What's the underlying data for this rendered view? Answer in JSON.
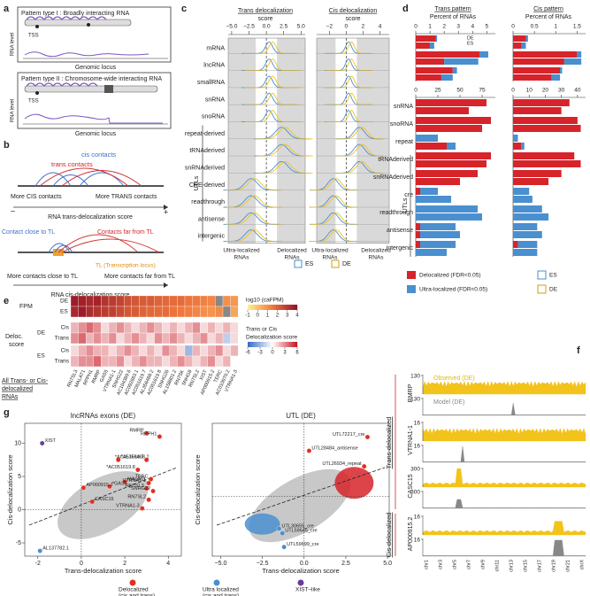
{
  "a": {
    "label": "a",
    "type1": "Pattern type I : Broadly interacting RNA",
    "type2": "Pattern type II : Chromosome-wide interacting RNA",
    "tss": "TSS",
    "rna_level": "RNA level",
    "genomic_locus": "Genomic locus"
  },
  "b": {
    "label": "b",
    "cis_contacts": "cis contacts",
    "trans_contacts": "trans contacts",
    "more_cis": "More CIS contacts",
    "more_trans": "More TRANS contacts",
    "minus": "–",
    "plus": "+",
    "trans_score": "RNA trans-delocalization score",
    "close_tl": "Contact close to TL",
    "far_tl": "Contacts far from TL",
    "tl": "TL (Transcription locus)",
    "more_close": "More contacts close to TL",
    "more_far": "More contacts far from TL",
    "cis_score": "RNA cis-delocalization score"
  },
  "c": {
    "label": "c",
    "trans_title": [
      "Trans delocalization",
      "score"
    ],
    "cis_title": [
      "Cis delocalization",
      "score"
    ],
    "trans_xlim": [
      -5.5,
      5.6
    ],
    "trans_xticks": [
      {
        "value": -5,
        "label": "−5.0"
      },
      {
        "value": -2.5,
        "label": "−2.5"
      },
      {
        "value": 0,
        "label": "0.0"
      },
      2.5,
      {
        "value": 5,
        "label": "5.0"
      }
    ],
    "cis_xlim": [
      -3.5,
      5.1
    ],
    "cis_xticks": [
      {
        "value": -2,
        "label": "−2"
      },
      0,
      2,
      4
    ],
    "categories": [
      "mRNA",
      "lncRNA",
      "smallRNA",
      "snRNA",
      "snoRNA",
      "repeat-derived",
      "tRNAderived",
      "snRNAderived",
      "CRE-derived",
      "readthrough",
      "antisense",
      "intergenic"
    ],
    "utls": "UTLs",
    "ultra": [
      "Ultra-localized",
      "RNAs"
    ],
    "deloc": [
      "Delocalized",
      "RNAs"
    ],
    "legend": [
      "ES",
      "DE"
    ]
  },
  "d": {
    "label": "d",
    "trans_title": "Trans pattern",
    "cis_title": "Cis pattern",
    "pct": "Percent of RNAs",
    "trans_top": {
      "xlim": [
        0,
        5.6
      ],
      "xticks": [
        0,
        1,
        2,
        3,
        4,
        5
      ],
      "delocalized": [
        [
          1.4,
          1.0
        ],
        [
          4.5,
          2.0
        ],
        [
          2.6,
          1.8
        ]
      ],
      "ultra": [
        [
          0.1,
          0.3
        ],
        [
          0.6,
          2.4
        ],
        [
          0.3,
          0.8
        ]
      ]
    },
    "cis_top": {
      "xlim": [
        0,
        1.7
      ],
      "xticks": [
        0,
        0.5,
        1,
        1.5
      ],
      "delocalized": [
        [
          0.3,
          0.2
        ],
        [
          1.5,
          1.2
        ],
        [
          1.1,
          0.9
        ]
      ],
      "ultra": [
        [
          0.05,
          0.1
        ],
        [
          0.1,
          0.4
        ],
        [
          0.05,
          0.2
        ]
      ]
    },
    "categories": [
      "snRNA",
      "snoRNA",
      "repeat",
      "tRNAderived",
      "snRNAderived",
      "cre",
      "readthrough",
      "antisense",
      "intergenic"
    ],
    "trans_bottom": {
      "xlim": [
        0,
        90
      ],
      "xticks": [
        0,
        25,
        50,
        75
      ],
      "delocalized": [
        [
          80,
          60
        ],
        [
          85,
          75
        ],
        [
          0,
          35
        ],
        [
          85,
          80
        ],
        [
          70,
          50
        ],
        [
          5,
          0
        ],
        [
          0,
          0
        ],
        [
          5,
          5
        ],
        [
          5,
          0
        ]
      ],
      "ultra": [
        [
          0,
          0
        ],
        [
          0,
          0
        ],
        [
          25,
          10
        ],
        [
          0,
          0
        ],
        [
          0,
          0
        ],
        [
          20,
          40
        ],
        [
          70,
          75
        ],
        [
          40,
          45
        ],
        [
          40,
          35
        ]
      ]
    },
    "cis_bottom": {
      "xlim": [
        0,
        45
      ],
      "xticks": [
        0,
        10,
        20,
        30,
        40
      ],
      "delocalized": [
        [
          35,
          30
        ],
        [
          40,
          42
        ],
        [
          0,
          5
        ],
        [
          38,
          42
        ],
        [
          30,
          22
        ],
        [
          0,
          0
        ],
        [
          0,
          0
        ],
        [
          0,
          0
        ],
        [
          3,
          0
        ]
      ],
      "ultra": [
        [
          0,
          0
        ],
        [
          0,
          0
        ],
        [
          3,
          2
        ],
        [
          0,
          0
        ],
        [
          0,
          0
        ],
        [
          10,
          12
        ],
        [
          18,
          22
        ],
        [
          15,
          18
        ],
        [
          12,
          15
        ]
      ]
    },
    "utls": "UTLs",
    "legend": {
      "delocalized": "Delocalized (FDR<0.05)",
      "ultra": "Ultra-localized (FDR<0.05)",
      "es": "ES",
      "de": "DE"
    }
  },
  "e": {
    "label": "e",
    "fpm": "FPM",
    "de": "DE",
    "es": "ES",
    "deloc": [
      "Deloc.",
      "score"
    ],
    "cis": "Cis",
    "trans": "Trans",
    "columns": [
      "RN7SL3",
      "MALAT1",
      "RPPH1",
      "RMRP",
      "GAS5",
      "VTRNA1-1",
      "SNHG22",
      "AC104389.6",
      "AC092683.1",
      "AC051619.7",
      "AL356488.2",
      "AC051619.8",
      "SNHG26",
      "AL158801.2",
      "RN7SK",
      "SNHG8",
      "RN7SL2",
      "XIST",
      "AP000915.2",
      "TERC",
      "AC010970.2",
      "VTRNA1-3"
    ],
    "fpm_de": [
      3.8,
      3.7,
      3.5,
      3.6,
      3.2,
      3.0,
      2.8,
      2.5,
      2.3,
      2.2,
      2.2,
      2.0,
      1.9,
      1.8,
      1.8,
      1.6,
      1.5,
      1.3,
      1.2,
      null,
      1.0,
      0.8
    ],
    "fpm_es": [
      3.5,
      3.8,
      3.4,
      3.2,
      3.0,
      2.9,
      2.6,
      2.3,
      2.2,
      2.0,
      1.9,
      1.8,
      1.8,
      1.6,
      1.5,
      1.4,
      1.2,
      1.0,
      0.9,
      1.1,
      null,
      0.5
    ],
    "de_cis": [
      2,
      3,
      4,
      3,
      1,
      2,
      3,
      2,
      1,
      2,
      3,
      2,
      1,
      2,
      1,
      2,
      3,
      1,
      2,
      1,
      2,
      1
    ],
    "de_trans": [
      3,
      4,
      2,
      3,
      2,
      3,
      1,
      2,
      3,
      2,
      1,
      3,
      2,
      3,
      2,
      1,
      2,
      3,
      1,
      2,
      -2,
      1
    ],
    "es_cis": [
      1,
      2,
      3,
      2,
      2,
      1,
      2,
      3,
      2,
      1,
      2,
      1,
      3,
      2,
      1,
      -3,
      2,
      1,
      2,
      3,
      1,
      2
    ],
    "es_trans": [
      2,
      3,
      3,
      4,
      2,
      2,
      3,
      1,
      2,
      3,
      2,
      2,
      1,
      2,
      3,
      2,
      1,
      2,
      3,
      1,
      2,
      0
    ],
    "fpm_title": "log10 (caFPM)",
    "fpm_lim": [
      -1,
      4
    ],
    "fpm_ticks": [
      -1,
      0,
      1,
      2,
      3,
      4
    ],
    "score_title": [
      "Trans or Cis",
      "Delocalization score"
    ],
    "score_lim": [
      -6,
      6
    ],
    "score_ticks": [
      -6,
      -3,
      0,
      3,
      6
    ],
    "footer": [
      "All Trans- or Cis-",
      "delocalized",
      "RNAs"
    ]
  },
  "f": {
    "label": "f",
    "observed": "Observed (DE)",
    "model": "Model (DE)",
    "genes": [
      "RMRP",
      "VTRNA1-1",
      "CASC15",
      "AP000915.2"
    ],
    "ymax": [
      130,
      130,
      16,
      16,
      300,
      300,
      16,
      16
    ],
    "trans": "Trans-delocalized",
    "cis": "Cis-delocalized",
    "chroms": [
      "chr1",
      "chr3",
      "chr5",
      "chr7",
      "chr9",
      "chr11",
      "chr13",
      "chr15",
      "chr17",
      "chr19",
      "chr21",
      "chrX"
    ]
  },
  "g": {
    "label": "g",
    "xlabel": "Trans-delocalization score",
    "ylabel": "Cis-delocalization score",
    "left": {
      "title": "lncRNAs exons (DE)",
      "xlim": [
        -2.6,
        4.6
      ],
      "xticks": [
        -2,
        0,
        2,
        4
      ],
      "ylim": [
        -7,
        13
      ],
      "yticks": [
        -5,
        0,
        5,
        10
      ],
      "points": [
        {
          "label": "XIST",
          "x": -1.8,
          "y": 10,
          "color": "#6a3d9a"
        },
        {
          "label": "RMRP",
          "x": 3.0,
          "y": 11.5,
          "color": "#e0301e"
        },
        {
          "label": "RPPH1",
          "x": 3.6,
          "y": 11,
          "color": "#e0301e"
        },
        {
          "label": "*AL356488.2",
          "x": 1.7,
          "y": 7.5,
          "color": "#e0301e"
        },
        {
          "label": "*AC051619.7",
          "x": 3.0,
          "y": 7.5,
          "color": "#e0301e"
        },
        {
          "label": "*AC051619.8",
          "x": 2.6,
          "y": 6,
          "color": "#e0301e"
        },
        {
          "label": "TERC",
          "x": 3.2,
          "y": 4.6,
          "color": "#e0301e"
        },
        {
          "label": "MALAT1",
          "x": 2.0,
          "y": 4.2,
          "color": "#e0301e"
        },
        {
          "label": "VTRNA1-1",
          "x": 3.1,
          "y": 4,
          "color": "#e0301e"
        },
        {
          "label": "*GAS5",
          "x": 1.3,
          "y": 3.5,
          "color": "#e0301e"
        },
        {
          "label": "AP000915.2",
          "x": 0.1,
          "y": 3.3,
          "color": "#e0301e"
        },
        {
          "label": "RN7SL3",
          "x": 3.0,
          "y": 3.2,
          "color": "#e0301e"
        },
        {
          "label": "*SNHG22",
          "x": 3.3,
          "y": 2.8,
          "color": "#e0301e"
        },
        {
          "label": "CASC15",
          "x": 0.5,
          "y": 1.2,
          "color": "#e0301e"
        },
        {
          "label": "RN7SL2",
          "x": 3.1,
          "y": 1.5,
          "color": "#e0301e"
        },
        {
          "label": "VTRNA1-3",
          "x": 2.8,
          "y": 0.2,
          "color": "#e0301e"
        },
        {
          "label": "AL137782.1",
          "x": -1.9,
          "y": -6.2,
          "color": "#4a8fcf"
        }
      ]
    },
    "right": {
      "title": "UTL (DE)",
      "xlim": [
        -5.5,
        5.1
      ],
      "xticks": [
        {
          "value": -5,
          "label": "−5.0"
        },
        {
          "value": -2.5,
          "label": "−2.5"
        },
        {
          "value": 0,
          "label": "0.0"
        },
        2.5,
        {
          "value": 5,
          "label": "5.0"
        }
      ],
      "ylim": [
        -6.5,
        8
      ],
      "points": [
        {
          "label": "UTL72217_cre",
          "x": 3.8,
          "y": 6.5,
          "color": "#e0301e"
        },
        {
          "label": "UTL28484_antisense",
          "x": 0.3,
          "y": 5,
          "color": "#e0301e"
        },
        {
          "label": "UTL26934_repeat",
          "x": 3.6,
          "y": 3.3,
          "color": "#e0301e"
        },
        {
          "label": "UTL30655_cre",
          "x": -1.5,
          "y": -3.5,
          "color": "#4a8fcf"
        },
        {
          "label": "UTL59645_cre",
          "x": -1.3,
          "y": -4,
          "color": "#4a8fcf"
        },
        {
          "label": "UTL59699_cre",
          "x": -1.2,
          "y": -5.5,
          "color": "#4a8fcf"
        }
      ]
    },
    "legend": [
      {
        "text": [
          "Delocalized",
          "(cis and trans)"
        ],
        "color": "#e0301e"
      },
      {
        "text": [
          "Ultra localized",
          "(cis and trans)"
        ],
        "color": "#4a8fcf"
      },
      {
        "text": [
          "XIST–like"
        ],
        "color": "#6a3d9a"
      }
    ]
  }
}
